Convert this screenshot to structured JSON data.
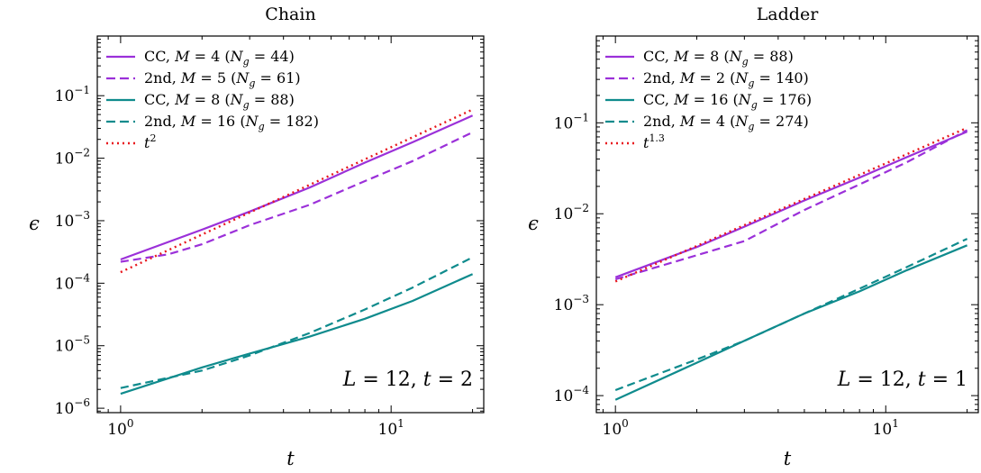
{
  "chart_data": [
    {
      "type": "line",
      "title": "Chain",
      "xlabel": "t",
      "ylabel": "ϵ",
      "xscale": "log",
      "yscale": "log",
      "xlim": [
        0.82,
        22
      ],
      "ylim": [
        8.5e-07,
        0.9
      ],
      "xticks": [
        {
          "v": 1,
          "b": "10",
          "e": "0"
        },
        {
          "v": 10,
          "b": "10",
          "e": "1"
        }
      ],
      "yticks": [
        {
          "v": 1e-06,
          "b": "10",
          "e": "−6"
        },
        {
          "v": 1e-05,
          "b": "10",
          "e": "−5"
        },
        {
          "v": 0.0001,
          "b": "10",
          "e": "−4"
        },
        {
          "v": 0.001,
          "b": "10",
          "e": "−3"
        },
        {
          "v": 0.01,
          "b": "10",
          "e": "−2"
        },
        {
          "v": 0.1,
          "b": "10",
          "e": "−1"
        }
      ],
      "legend_position": "upper-left",
      "annotation": "L = 12, t = 2",
      "series": [
        {
          "name": "CC, M = 4 (N_g = 44)",
          "color": "#9b30d9",
          "dash": "solid",
          "legend": {
            "pre": "CC, ",
            "v1": "M",
            "mid": " = 4 (",
            "v2": "N",
            "sub": "g",
            "post": " = 44)"
          },
          "x": [
            1,
            2,
            3,
            5,
            8,
            12,
            20
          ],
          "y": [
            0.00024,
            0.00072,
            0.0014,
            0.0034,
            0.0085,
            0.018,
            0.048
          ]
        },
        {
          "name": "2nd, M = 5 (N_g = 61)",
          "color": "#9b30d9",
          "dash": "dashed",
          "legend": {
            "pre": "2nd, ",
            "v1": "M",
            "mid": " = 5 (",
            "v2": "N",
            "sub": "g",
            "post": " = 61)"
          },
          "x": [
            1,
            1.5,
            2,
            3,
            5,
            8,
            12,
            20
          ],
          "y": [
            0.00022,
            0.00029,
            0.00042,
            0.00085,
            0.0018,
            0.0043,
            0.009,
            0.026
          ]
        },
        {
          "name": "CC, M = 8 (N_g = 88)",
          "color": "#0f8b8d",
          "dash": "solid",
          "legend": {
            "pre": "CC, ",
            "v1": "M",
            "mid": " = 8 (",
            "v2": "N",
            "sub": "g",
            "post": " = 88)"
          },
          "x": [
            1,
            2,
            3,
            5,
            8,
            12,
            20
          ],
          "y": [
            1.7e-06,
            4.5e-06,
            7.5e-06,
            1.4e-05,
            2.7e-05,
            5.2e-05,
            0.00014
          ]
        },
        {
          "name": "2nd, M = 16 (N_g = 182)",
          "color": "#0f8b8d",
          "dash": "dashed",
          "legend": {
            "pre": "2nd, ",
            "v1": "M",
            "mid": " = 16 (",
            "v2": "N",
            "sub": "g",
            "post": " = 182)"
          },
          "x": [
            1,
            2,
            3,
            5,
            8,
            12,
            20
          ],
          "y": [
            2.1e-06,
            4e-06,
            7e-06,
            1.6e-05,
            3.8e-05,
            8.5e-05,
            0.00026
          ]
        },
        {
          "name": "t^2",
          "color": "#e8161c",
          "dash": "dotted",
          "legend": {
            "v1": "t",
            "sup": "2"
          },
          "x": [
            1,
            20
          ],
          "y": [
            0.00015,
            0.06
          ]
        }
      ]
    },
    {
      "type": "line",
      "title": "Ladder",
      "xlabel": "t",
      "ylabel": "ϵ",
      "xscale": "log",
      "yscale": "log",
      "xlim": [
        0.85,
        22
      ],
      "ylim": [
        6.5e-05,
        0.9
      ],
      "xticks": [
        {
          "v": 1,
          "b": "10",
          "e": "0"
        },
        {
          "v": 10,
          "b": "10",
          "e": "1"
        }
      ],
      "yticks": [
        {
          "v": 0.0001,
          "b": "10",
          "e": "−4"
        },
        {
          "v": 0.001,
          "b": "10",
          "e": "−3"
        },
        {
          "v": 0.01,
          "b": "10",
          "e": "−2"
        },
        {
          "v": 0.1,
          "b": "10",
          "e": "−1"
        }
      ],
      "legend_position": "upper-left",
      "annotation": "L = 12, t = 1",
      "series": [
        {
          "name": "CC, M = 8 (N_g = 88)",
          "color": "#9b30d9",
          "dash": "solid",
          "legend": {
            "pre": "CC, ",
            "v1": "M",
            "mid": " = 8 (",
            "v2": "N",
            "sub": "g",
            "post": " = 88)"
          },
          "x": [
            1,
            2,
            3,
            5,
            8,
            12,
            20
          ],
          "y": [
            0.002,
            0.0043,
            0.0072,
            0.014,
            0.025,
            0.042,
            0.08
          ]
        },
        {
          "name": "2nd, M = 2 (N_g = 140)",
          "color": "#9b30d9",
          "dash": "dashed",
          "legend": {
            "pre": "2nd, ",
            "v1": "M",
            "mid": " = 2 (",
            "v2": "N",
            "sub": "g",
            "post": " = 140)"
          },
          "x": [
            1,
            2,
            3,
            5,
            8,
            12,
            20
          ],
          "y": [
            0.0019,
            0.0035,
            0.005,
            0.011,
            0.021,
            0.037,
            0.083
          ]
        },
        {
          "name": "CC, M = 16 (N_g = 176)",
          "color": "#0f8b8d",
          "dash": "solid",
          "legend": {
            "pre": "CC, ",
            "v1": "M",
            "mid": " = 16 (",
            "v2": "N",
            "sub": "g",
            "post": " = 176)"
          },
          "x": [
            1,
            2,
            3,
            5,
            8,
            12,
            20
          ],
          "y": [
            9e-05,
            0.00023,
            0.0004,
            0.0008,
            0.0014,
            0.0024,
            0.0045
          ]
        },
        {
          "name": "2nd, M = 4 (N_g = 274)",
          "color": "#0f8b8d",
          "dash": "dashed",
          "legend": {
            "pre": "2nd, ",
            "v1": "M",
            "mid": " = 4 (",
            "v2": "N",
            "sub": "g",
            "post": " = 274)"
          },
          "x": [
            1,
            2,
            3,
            5,
            8,
            12,
            20
          ],
          "y": [
            0.000115,
            0.00025,
            0.0004,
            0.0008,
            0.0015,
            0.0026,
            0.0053
          ]
        },
        {
          "name": "t^1.3",
          "color": "#e8161c",
          "dash": "dotted",
          "legend": {
            "v1": "t",
            "sup": "1.3"
          },
          "x": [
            1,
            20
          ],
          "y": [
            0.0018,
            0.088
          ]
        }
      ]
    }
  ]
}
